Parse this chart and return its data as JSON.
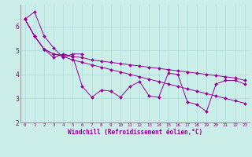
{
  "xlabel": "Windchill (Refroidissement éolien,°C)",
  "ylabel": "",
  "background_color": "#cceee8",
  "grid_color": "#aadddd",
  "line_color": "#990099",
  "xlim": [
    -0.5,
    23.5
  ],
  "ylim": [
    2.0,
    6.9
  ],
  "xticks": [
    0,
    1,
    2,
    3,
    4,
    5,
    6,
    7,
    8,
    9,
    10,
    11,
    12,
    13,
    14,
    15,
    16,
    17,
    18,
    19,
    20,
    21,
    22,
    23
  ],
  "yticks": [
    2,
    3,
    4,
    5,
    6
  ],
  "lines": [
    [
      0,
      6.3,
      1,
      6.6,
      2,
      5.6,
      3,
      5.1,
      4,
      4.7,
      5,
      4.85,
      6,
      4.85
    ],
    [
      0,
      6.3,
      1,
      5.6,
      2,
      5.05,
      3,
      4.85,
      4,
      4.8,
      5,
      4.75,
      6,
      4.7,
      7,
      4.6,
      8,
      4.55,
      9,
      4.5,
      10,
      4.45,
      11,
      4.4,
      12,
      4.35,
      13,
      4.3,
      14,
      4.25,
      15,
      4.2,
      16,
      4.15,
      17,
      4.1,
      18,
      4.05,
      19,
      4.0,
      20,
      3.95,
      21,
      3.9,
      22,
      3.85,
      23,
      3.75
    ],
    [
      0,
      6.3,
      1,
      5.6,
      2,
      5.05,
      3,
      4.7,
      4,
      4.85,
      5,
      4.75,
      6,
      3.5,
      7,
      3.05,
      8,
      3.35,
      9,
      3.3,
      10,
      3.05,
      11,
      3.5,
      12,
      3.7,
      13,
      3.1,
      14,
      3.05,
      15,
      4.05,
      16,
      4.0,
      17,
      2.85,
      18,
      2.75,
      19,
      2.45,
      20,
      3.6,
      21,
      3.75,
      22,
      3.75,
      23,
      3.6
    ],
    [
      0,
      6.3,
      1,
      5.6,
      2,
      5.05,
      3,
      4.85,
      4,
      4.75,
      5,
      4.6,
      6,
      4.5,
      7,
      4.4,
      8,
      4.3,
      9,
      4.2,
      10,
      4.1,
      11,
      4.0,
      12,
      3.9,
      13,
      3.8,
      14,
      3.7,
      15,
      3.6,
      16,
      3.5,
      17,
      3.4,
      18,
      3.3,
      19,
      3.2,
      20,
      3.1,
      21,
      3.0,
      22,
      2.9,
      23,
      2.8
    ]
  ]
}
